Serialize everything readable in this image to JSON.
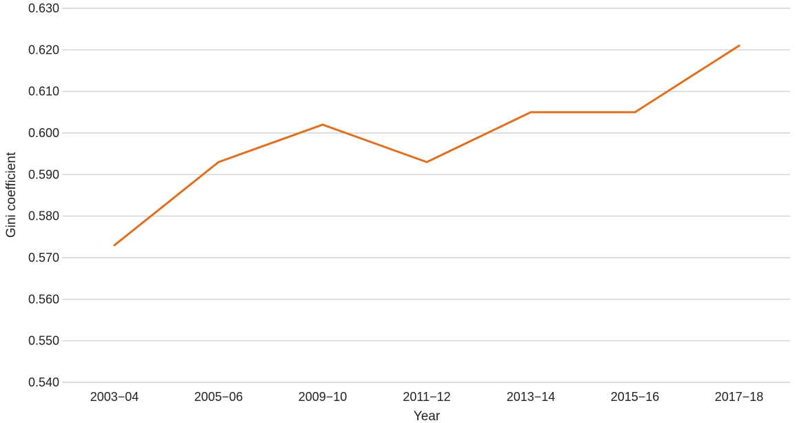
{
  "chart_data": {
    "type": "line",
    "title": "",
    "xlabel": "Year",
    "ylabel": "Gini coefficient",
    "categories": [
      "2003−04",
      "2005−06",
      "2009−10",
      "2011−12",
      "2013−14",
      "2015−16",
      "2017−18"
    ],
    "series": [
      {
        "values": [
          0.573,
          0.593,
          0.602,
          0.593,
          0.605,
          0.605,
          0.621
        ],
        "color": "#e07020"
      }
    ],
    "ylim": [
      0.54,
      0.63
    ],
    "yticks": [
      "0.540",
      "0.550",
      "0.560",
      "0.570",
      "0.580",
      "0.590",
      "0.600",
      "0.610",
      "0.620",
      "0.630"
    ],
    "grid": "horizontal",
    "legend": "none"
  }
}
